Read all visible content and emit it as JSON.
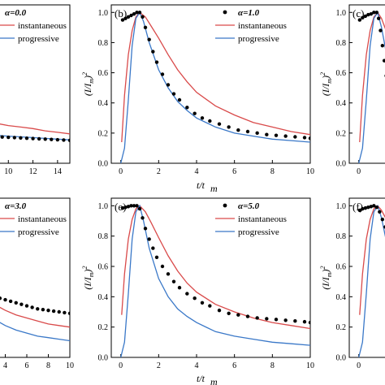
{
  "colors": {
    "instantaneous": "#d94a4a",
    "progressive": "#3a78c8",
    "exp": "#000000"
  },
  "chart_data": [
    {
      "panel": "a",
      "type": "line",
      "alpha_label": "α=0.0",
      "legend": {
        "inst": "instantaneous",
        "prog": "progressive"
      },
      "xlim": [
        8,
        15
      ],
      "ylim": [
        0,
        1.05
      ],
      "xticks": [
        "10",
        "12",
        "14"
      ],
      "tick_values": [
        10,
        12,
        14
      ],
      "yticks": [],
      "series": [
        {
          "key": "inst",
          "style": "line",
          "x": [
            8,
            9,
            10,
            11,
            12,
            13,
            14,
            15
          ],
          "y": [
            0.28,
            0.265,
            0.25,
            0.24,
            0.23,
            0.215,
            0.205,
            0.195
          ]
        },
        {
          "key": "prog",
          "style": "line",
          "x": [
            8,
            9,
            10,
            11,
            12,
            13,
            14,
            15
          ],
          "y": [
            0.19,
            0.185,
            0.18,
            0.175,
            0.17,
            0.165,
            0.16,
            0.155
          ]
        },
        {
          "key": "exp",
          "style": "dots",
          "x": [
            8,
            8.5,
            9,
            9.5,
            10,
            10.5,
            11,
            11.5,
            12,
            12.5,
            13,
            13.5,
            14,
            14.5,
            15
          ],
          "y": [
            0.18,
            0.178,
            0.176,
            0.174,
            0.172,
            0.17,
            0.168,
            0.166,
            0.164,
            0.162,
            0.16,
            0.158,
            0.156,
            0.154,
            0.152
          ]
        }
      ]
    },
    {
      "panel": "b",
      "panel_label": "(b)",
      "type": "line",
      "alpha_label": "α=1.0",
      "legend": {
        "inst": "instantaneous",
        "prog": "progressive"
      },
      "xlim": [
        -0.5,
        10
      ],
      "ylim": [
        0,
        1.05
      ],
      "xticks": [
        "0",
        "2",
        "4",
        "6",
        "8",
        "10"
      ],
      "tick_values": [
        0,
        2,
        4,
        6,
        8,
        10
      ],
      "yticks": [
        "0.0",
        "0.2",
        "0.4",
        "0.6",
        "0.8",
        "1.0"
      ],
      "ytick_values": [
        0,
        0.2,
        0.4,
        0.6,
        0.8,
        1.0
      ],
      "ylabel": "(I/I_m)²",
      "series": [
        {
          "key": "inst",
          "style": "line",
          "x": [
            0.05,
            0.2,
            0.4,
            0.6,
            0.8,
            1.0,
            1.3,
            1.6,
            2,
            2.5,
            3,
            3.5,
            4,
            5,
            6,
            7,
            8,
            9,
            10
          ],
          "y": [
            0.14,
            0.45,
            0.72,
            0.88,
            0.97,
            1.0,
            0.97,
            0.91,
            0.83,
            0.72,
            0.62,
            0.54,
            0.47,
            0.38,
            0.32,
            0.27,
            0.24,
            0.21,
            0.19
          ]
        },
        {
          "key": "prog",
          "style": "line",
          "x": [
            0,
            0.2,
            0.4,
            0.6,
            0.8,
            1.0,
            1.2,
            1.5,
            2,
            2.5,
            3,
            3.5,
            4,
            5,
            6,
            7,
            8,
            9,
            10
          ],
          "y": [
            0.0,
            0.1,
            0.42,
            0.78,
            0.96,
            1.0,
            0.94,
            0.8,
            0.62,
            0.5,
            0.41,
            0.35,
            0.3,
            0.24,
            0.2,
            0.18,
            0.16,
            0.15,
            0.14
          ]
        },
        {
          "key": "exp",
          "style": "dots",
          "x": [
            0.1,
            0.25,
            0.4,
            0.55,
            0.7,
            0.85,
            1.0,
            1.15,
            1.3,
            1.5,
            1.7,
            1.9,
            2.2,
            2.5,
            2.8,
            3.1,
            3.5,
            3.9,
            4.3,
            4.7,
            5.2,
            5.7,
            6.2,
            6.7,
            7.2,
            7.7,
            8.2,
            8.7,
            9.2,
            9.7,
            10
          ],
          "y": [
            0.95,
            0.96,
            0.97,
            0.98,
            0.99,
            1.0,
            1.0,
            0.97,
            0.9,
            0.82,
            0.74,
            0.67,
            0.59,
            0.52,
            0.46,
            0.42,
            0.37,
            0.33,
            0.3,
            0.28,
            0.26,
            0.24,
            0.22,
            0.21,
            0.2,
            0.19,
            0.185,
            0.18,
            0.175,
            0.17,
            0.165
          ]
        }
      ]
    },
    {
      "panel": "c",
      "panel_label": "(c)",
      "type": "line",
      "xlim": [
        -0.5,
        2.5
      ],
      "ylim": [
        0,
        1.05
      ],
      "xticks": [
        "0"
      ],
      "tick_values": [
        0
      ],
      "yticks": [
        "0.0",
        "0.2",
        "0.4",
        "0.6",
        "0.8",
        "1.0"
      ],
      "ytick_values": [
        0,
        0.2,
        0.4,
        0.6,
        0.8,
        1.0
      ],
      "ylabel": "(I/I_m)²",
      "series": [
        {
          "key": "inst",
          "style": "line",
          "x": [
            0.05,
            0.2,
            0.4,
            0.6,
            0.8,
            1.0,
            1.2,
            1.5,
            2.0,
            2.5
          ],
          "y": [
            0.14,
            0.45,
            0.72,
            0.88,
            0.97,
            1.0,
            0.96,
            0.86,
            0.72,
            0.62
          ]
        },
        {
          "key": "prog",
          "style": "line",
          "x": [
            0,
            0.2,
            0.4,
            0.6,
            0.8,
            1.0,
            1.2,
            1.5,
            2.0,
            2.5
          ],
          "y": [
            0.0,
            0.1,
            0.42,
            0.78,
            0.96,
            1.0,
            0.9,
            0.7,
            0.5,
            0.38
          ]
        },
        {
          "key": "exp",
          "style": "dots",
          "x": [
            0.05,
            0.2,
            0.35,
            0.5,
            0.65,
            0.8,
            0.95,
            1.05,
            1.15,
            1.25,
            1.35,
            1.45,
            1.55,
            1.7,
            1.85,
            2.0,
            2.2,
            2.4
          ],
          "y": [
            0.95,
            0.965,
            0.975,
            0.985,
            0.99,
            1.0,
            1.0,
            0.96,
            0.88,
            0.78,
            0.68,
            0.58,
            0.5,
            0.4,
            0.33,
            0.28,
            0.24,
            0.21
          ]
        }
      ]
    },
    {
      "panel": "d",
      "type": "line",
      "alpha_label": "α=3.0",
      "legend": {
        "inst": "instantaneous",
        "prog": "progressive"
      },
      "xlim": [
        2,
        10
      ],
      "ylim": [
        0,
        1.05
      ],
      "xticks": [
        "4",
        "6",
        "8",
        "10"
      ],
      "tick_values": [
        4,
        6,
        8,
        10
      ],
      "yticks": [],
      "series": [
        {
          "key": "inst",
          "style": "line",
          "x": [
            2,
            3,
            4,
            5,
            6,
            7,
            8,
            9,
            10
          ],
          "y": [
            0.4,
            0.35,
            0.31,
            0.28,
            0.26,
            0.24,
            0.22,
            0.21,
            0.2
          ]
        },
        {
          "key": "prog",
          "style": "line",
          "x": [
            2,
            3,
            4,
            5,
            6,
            7,
            8,
            9,
            10
          ],
          "y": [
            0.3,
            0.25,
            0.21,
            0.18,
            0.16,
            0.14,
            0.13,
            0.12,
            0.11
          ]
        },
        {
          "key": "exp",
          "style": "dots",
          "x": [
            2,
            2.5,
            3,
            3.5,
            4,
            4.5,
            5,
            5.5,
            6,
            6.5,
            7,
            7.5,
            8,
            8.5,
            9,
            9.5,
            10
          ],
          "y": [
            0.42,
            0.41,
            0.4,
            0.39,
            0.38,
            0.37,
            0.36,
            0.35,
            0.34,
            0.33,
            0.32,
            0.315,
            0.31,
            0.305,
            0.3,
            0.295,
            0.29
          ]
        }
      ]
    },
    {
      "panel": "e",
      "panel_label": "(e)",
      "type": "line",
      "alpha_label": "α=5.0",
      "legend": {
        "inst": "instantaneous",
        "prog": "progressive"
      },
      "xlim": [
        -0.5,
        10
      ],
      "ylim": [
        0,
        1.05
      ],
      "xticks": [
        "0",
        "2",
        "4",
        "6",
        "8",
        "10"
      ],
      "tick_values": [
        0,
        2,
        4,
        6,
        8,
        10
      ],
      "yticks": [
        "0.0",
        "0.2",
        "0.4",
        "0.6",
        "0.8",
        "1.0"
      ],
      "ytick_values": [
        0,
        0.2,
        0.4,
        0.6,
        0.8,
        1.0
      ],
      "ylabel": "(I/I_m)²",
      "series": [
        {
          "key": "inst",
          "style": "line",
          "x": [
            0.05,
            0.2,
            0.4,
            0.6,
            0.8,
            1.0,
            1.3,
            1.6,
            2,
            2.5,
            3,
            3.5,
            4,
            5,
            6,
            7,
            8,
            9,
            10
          ],
          "y": [
            0.28,
            0.55,
            0.78,
            0.91,
            0.98,
            1.0,
            0.96,
            0.89,
            0.79,
            0.67,
            0.57,
            0.49,
            0.43,
            0.35,
            0.3,
            0.26,
            0.23,
            0.21,
            0.19
          ]
        },
        {
          "key": "prog",
          "style": "line",
          "x": [
            0,
            0.2,
            0.4,
            0.6,
            0.8,
            1.0,
            1.2,
            1.5,
            2,
            2.5,
            3,
            3.5,
            4,
            5,
            6,
            7,
            8,
            9,
            10
          ],
          "y": [
            0.0,
            0.1,
            0.42,
            0.78,
            0.96,
            1.0,
            0.9,
            0.72,
            0.52,
            0.4,
            0.32,
            0.27,
            0.23,
            0.17,
            0.14,
            0.12,
            0.1,
            0.09,
            0.08
          ]
        },
        {
          "key": "exp",
          "style": "dots",
          "x": [
            0.1,
            0.25,
            0.4,
            0.55,
            0.7,
            0.85,
            1.0,
            1.15,
            1.3,
            1.5,
            1.7,
            1.9,
            2.2,
            2.5,
            2.8,
            3.1,
            3.5,
            3.9,
            4.3,
            4.7,
            5.2,
            5.7,
            6.2,
            6.7,
            7.2,
            7.7,
            8.2,
            8.7,
            9.2,
            9.7,
            10
          ],
          "y": [
            0.985,
            0.99,
            0.995,
            1.0,
            1.0,
            1.0,
            0.98,
            0.92,
            0.85,
            0.78,
            0.72,
            0.66,
            0.6,
            0.55,
            0.5,
            0.46,
            0.42,
            0.39,
            0.36,
            0.34,
            0.31,
            0.29,
            0.28,
            0.27,
            0.26,
            0.255,
            0.25,
            0.245,
            0.24,
            0.235,
            0.23
          ]
        }
      ]
    },
    {
      "panel": "f",
      "panel_label": "(f)",
      "type": "line",
      "xlim": [
        -0.5,
        2.5
      ],
      "ylim": [
        0,
        1.05
      ],
      "xticks": [
        "0"
      ],
      "tick_values": [
        0
      ],
      "yticks": [
        "0.0",
        "0.2",
        "0.4",
        "0.6",
        "0.8",
        "1.0"
      ],
      "ytick_values": [
        0,
        0.2,
        0.4,
        0.6,
        0.8,
        1.0
      ],
      "ylabel": "(I/I_m)²",
      "series": [
        {
          "key": "inst",
          "style": "line",
          "x": [
            0.05,
            0.2,
            0.4,
            0.6,
            0.8,
            1.0,
            1.2,
            1.5,
            2.0,
            2.5
          ],
          "y": [
            0.28,
            0.55,
            0.78,
            0.91,
            0.98,
            1.0,
            0.97,
            0.9,
            0.77,
            0.66
          ]
        },
        {
          "key": "prog",
          "style": "line",
          "x": [
            0,
            0.2,
            0.4,
            0.6,
            0.8,
            1.0,
            1.2,
            1.5,
            2.0,
            2.5
          ],
          "y": [
            0.0,
            0.1,
            0.42,
            0.78,
            0.96,
            1.0,
            0.92,
            0.74,
            0.55,
            0.42
          ]
        },
        {
          "key": "exp",
          "style": "dots",
          "x": [
            0.05,
            0.2,
            0.35,
            0.5,
            0.65,
            0.8,
            0.95,
            1.1,
            1.25,
            1.4,
            1.55,
            1.7,
            1.85,
            2.0,
            2.2,
            2.4
          ],
          "y": [
            0.97,
            0.98,
            0.985,
            0.99,
            0.995,
            1.0,
            0.99,
            0.96,
            0.91,
            0.86,
            0.81,
            0.76,
            0.72,
            0.68,
            0.63,
            0.59
          ]
        }
      ]
    }
  ],
  "xlabel_top": "t/t_m",
  "xlabel_bottom": "t/t_m"
}
